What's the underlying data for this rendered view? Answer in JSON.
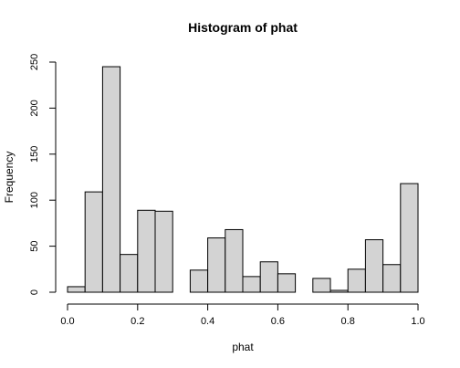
{
  "chart_data": {
    "type": "bar",
    "title": "Histogram of phat",
    "xlabel": "phat",
    "ylabel": "Frequency",
    "bin_width": 0.05,
    "bins": [
      [
        0.0,
        0.05
      ],
      [
        0.05,
        0.1
      ],
      [
        0.1,
        0.15
      ],
      [
        0.15,
        0.2
      ],
      [
        0.2,
        0.25
      ],
      [
        0.25,
        0.3
      ],
      [
        0.3,
        0.35
      ],
      [
        0.35,
        0.4
      ],
      [
        0.4,
        0.45
      ],
      [
        0.45,
        0.5
      ],
      [
        0.5,
        0.55
      ],
      [
        0.55,
        0.6
      ],
      [
        0.6,
        0.65
      ],
      [
        0.65,
        0.7
      ],
      [
        0.7,
        0.75
      ],
      [
        0.75,
        0.8
      ],
      [
        0.8,
        0.85
      ],
      [
        0.85,
        0.9
      ],
      [
        0.9,
        0.95
      ],
      [
        0.95,
        1.0
      ]
    ],
    "values": [
      6,
      109,
      245,
      41,
      89,
      88,
      0,
      24,
      59,
      68,
      17,
      33,
      20,
      0,
      15,
      2,
      25,
      57,
      30,
      118
    ],
    "xlim": [
      0.0,
      1.0
    ],
    "ylim": [
      0,
      250
    ],
    "x_ticks": [
      0.0,
      0.2,
      0.4,
      0.6,
      0.8,
      1.0
    ],
    "x_tick_labels": [
      "0.0",
      "0.2",
      "0.4",
      "0.6",
      "0.8",
      "1.0"
    ],
    "y_ticks": [
      0,
      50,
      100,
      150,
      200,
      250
    ],
    "y_tick_labels": [
      "0",
      "50",
      "100",
      "150",
      "200",
      "250"
    ],
    "grid": false,
    "bar_color": "#d3d3d3",
    "edge_color": "#000000"
  }
}
